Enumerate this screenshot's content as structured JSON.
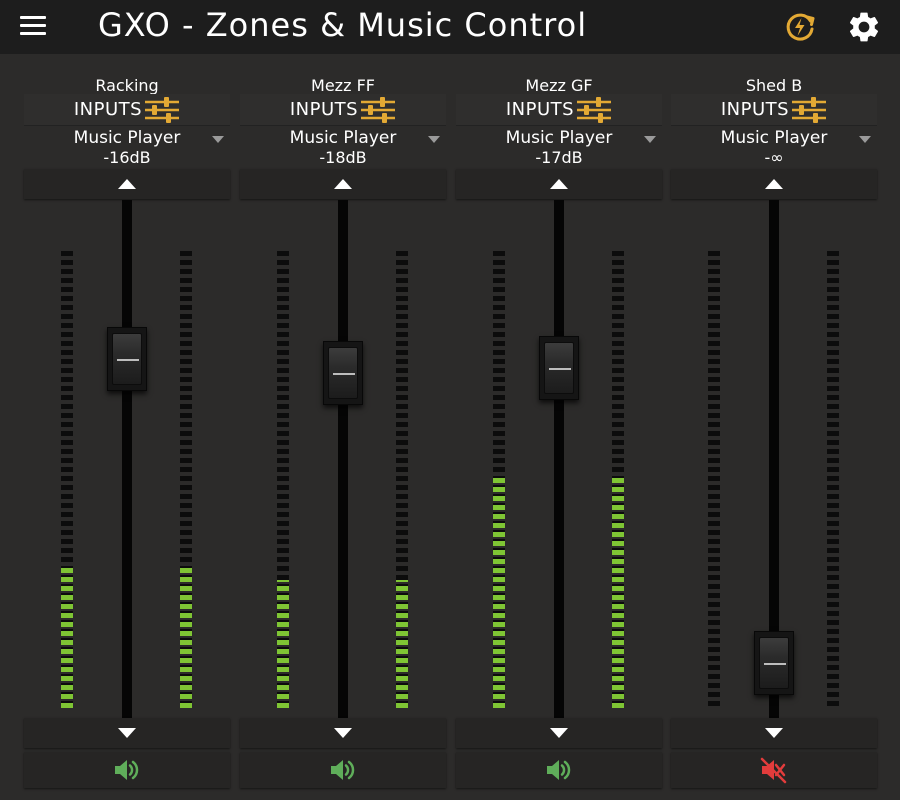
{
  "app": {
    "title": "GXO - Zones & Music Control",
    "header_icons": [
      "menu-icon",
      "power-refresh-icon",
      "settings-gear-icon"
    ],
    "accent_color": "#e3a934"
  },
  "colors": {
    "meter_active": "#7fc534",
    "speaker_on": "#5fae5a",
    "speaker_muted": "#e23c3c"
  },
  "zones": [
    {
      "name": "Racking",
      "inputs_label": "INPUTS",
      "source": "Music Player",
      "level": "-16dB",
      "fader_fraction": 0.72,
      "meter_left_fraction": 0.31,
      "meter_right_fraction": 0.31,
      "muted": false
    },
    {
      "name": "Mezz FF",
      "inputs_label": "INPUTS",
      "source": "Music Player",
      "level": "-18dB",
      "fader_fraction": 0.69,
      "meter_left_fraction": 0.28,
      "meter_right_fraction": 0.28,
      "muted": false
    },
    {
      "name": "Mezz GF",
      "inputs_label": "INPUTS",
      "source": "Music Player",
      "level": "-17dB",
      "fader_fraction": 0.7,
      "meter_left_fraction": 0.51,
      "meter_right_fraction": 0.51,
      "muted": false
    },
    {
      "name": "Shed B",
      "inputs_label": "INPUTS",
      "source": "Music Player",
      "level": "-∞",
      "fader_fraction": 0.05,
      "meter_left_fraction": 0,
      "meter_right_fraction": 0,
      "muted": true
    }
  ]
}
